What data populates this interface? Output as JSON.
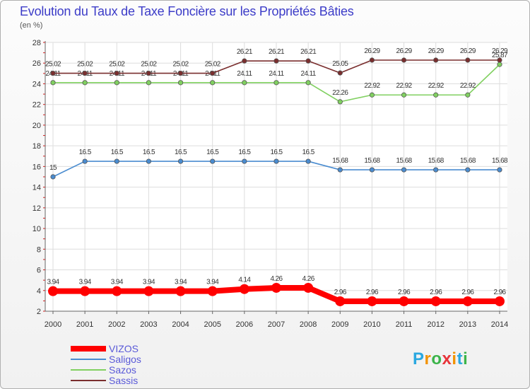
{
  "title": "Evolution du Taux de Taxe Foncière sur les Propriétés Bâties",
  "subtitle": "(en %)",
  "logo": {
    "letters": [
      "P",
      "r",
      "o",
      "x",
      "i",
      "t",
      "i"
    ],
    "colors": [
      "#2aa8e0",
      "#f29200",
      "#3cb44a",
      "#e8343a",
      "#f29200",
      "#2aa8e0",
      "#3cb44a"
    ]
  },
  "chart_data": {
    "type": "line",
    "title": "Evolution du Taux de Taxe Foncière sur les Propriétés Bâties",
    "ylabel": "(en %)",
    "xlabel": "",
    "ylim": [
      2,
      28
    ],
    "yticks": [
      2,
      4,
      6,
      8,
      10,
      12,
      14,
      16,
      18,
      20,
      22,
      24,
      26,
      28
    ],
    "categories": [
      2000,
      2001,
      2002,
      2003,
      2004,
      2005,
      2006,
      2007,
      2008,
      2009,
      2010,
      2011,
      2012,
      2013,
      2014
    ],
    "series": [
      {
        "name": "VIZOS",
        "color": "#ff0000",
        "values": [
          3.94,
          3.94,
          3.94,
          3.94,
          3.94,
          3.94,
          4.14,
          4.26,
          4.26,
          2.96,
          2.96,
          2.96,
          2.96,
          2.96,
          2.96
        ],
        "labels": [
          "3.94",
          "3.94",
          "3.94",
          "3.94",
          "3.94",
          "3.94",
          "4.14",
          "4.26",
          "4.26",
          "2.96",
          "2.96",
          "2.96",
          "2.96",
          "2.96",
          "2.96"
        ]
      },
      {
        "name": "Saligos",
        "color": "#4a8cd0",
        "values": [
          15,
          16.5,
          16.5,
          16.5,
          16.5,
          16.5,
          16.5,
          16.5,
          16.5,
          15.68,
          15.68,
          15.68,
          15.68,
          15.68,
          15.68
        ],
        "labels": [
          "15",
          "16.5",
          "16.5",
          "16.5",
          "16.5",
          "16.5",
          "16.5",
          "16.5",
          "16.5",
          "15.68",
          "15.68",
          "15.68",
          "15.68",
          "15.68",
          "15.68"
        ]
      },
      {
        "name": "Sazos",
        "color": "#80d060",
        "values": [
          24.11,
          24.11,
          24.11,
          24.11,
          24.11,
          24.11,
          24.11,
          24.11,
          24.11,
          22.26,
          22.92,
          22.92,
          22.92,
          22.92,
          25.87
        ],
        "labels": [
          "24.11",
          "24.11",
          "24.11",
          "24.11",
          "24.11",
          "24.11",
          "24.11",
          "24.11",
          "24.11",
          "22.26",
          "22.92",
          "22.92",
          "22.92",
          "22.92",
          "25.87"
        ]
      },
      {
        "name": "Sassis",
        "color": "#7a2e2e",
        "values": [
          25.02,
          25.02,
          25.02,
          25.02,
          25.02,
          25.02,
          26.21,
          26.21,
          26.21,
          25.05,
          26.29,
          26.29,
          26.29,
          26.29,
          26.29
        ],
        "labels": [
          "25.02",
          "25.02",
          "25.02",
          "25.02",
          "25.02",
          "25.02",
          "26.21",
          "26.21",
          "26.21",
          "25.05",
          "26.29",
          "26.29",
          "26.29",
          "26.29",
          "26.29"
        ]
      }
    ],
    "legend_position": "bottom-left"
  }
}
